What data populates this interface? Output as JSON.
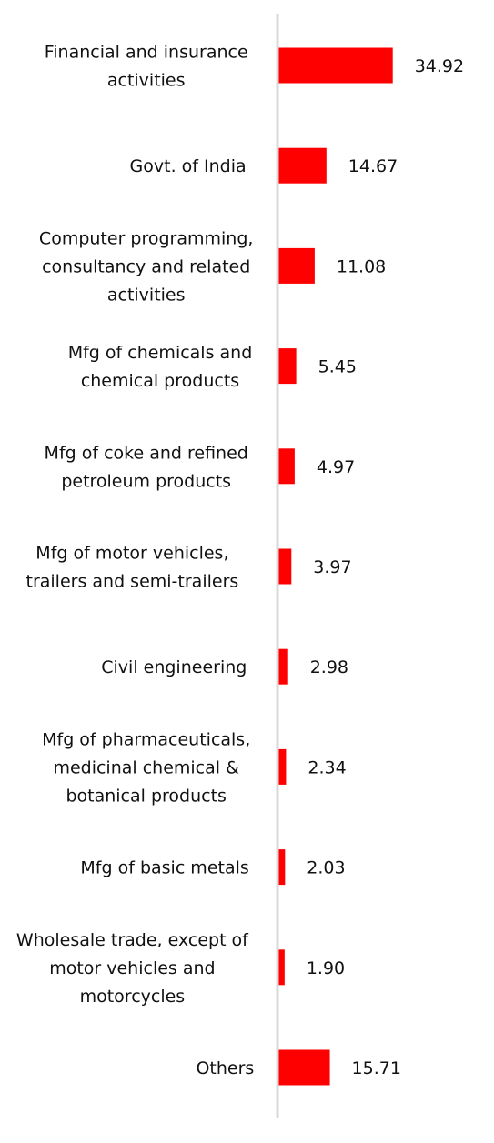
{
  "chart_data": {
    "type": "bar",
    "orientation": "horizontal",
    "categories": [
      "Financial and insurance activities",
      "Govt. of India",
      "Computer programming, consultancy and related activities",
      "Mfg of chemicals and chemical products",
      "Mfg of coke and refined petroleum products",
      "Mfg of motor vehicles, trailers and semi-trailers",
      "Civil engineering",
      "Mfg of pharmaceuticals, medicinal chemical & botanical products",
      "Mfg of basic metals",
      "Wholesale trade, except of motor vehicles and motorcycles",
      "Others"
    ],
    "category_lines": [
      [
        "Financial and insurance",
        "activities"
      ],
      [
        "Govt. of India"
      ],
      [
        "Computer programming,",
        "consultancy and related",
        "activities"
      ],
      [
        "Mfg of chemicals and",
        "chemical products"
      ],
      [
        "Mfg of coke and refined",
        "petroleum products"
      ],
      [
        "Mfg of motor vehicles,",
        "trailers and semi-trailers"
      ],
      [
        "Civil engineering"
      ],
      [
        "Mfg of pharmaceuticals,",
        "medicinal chemical &",
        "botanical products"
      ],
      [
        "Mfg of basic metals"
      ],
      [
        "Wholesale trade, except of",
        "motor vehicles and",
        "motorcycles"
      ],
      [
        "Others"
      ]
    ],
    "values": [
      34.92,
      14.67,
      11.08,
      5.45,
      4.97,
      3.97,
      2.98,
      2.34,
      2.03,
      1.9,
      15.71
    ],
    "value_labels": [
      "34.92",
      "14.67",
      "11.08",
      "5.45",
      "4.97",
      "3.97",
      "2.98",
      "2.34",
      "2.03",
      "1.90",
      "15.71"
    ],
    "title": "",
    "xlabel": "",
    "ylabel": "",
    "bar_color": "#ff0000",
    "axis_color": "#d9d9d9",
    "grid": false,
    "legend": "none"
  }
}
